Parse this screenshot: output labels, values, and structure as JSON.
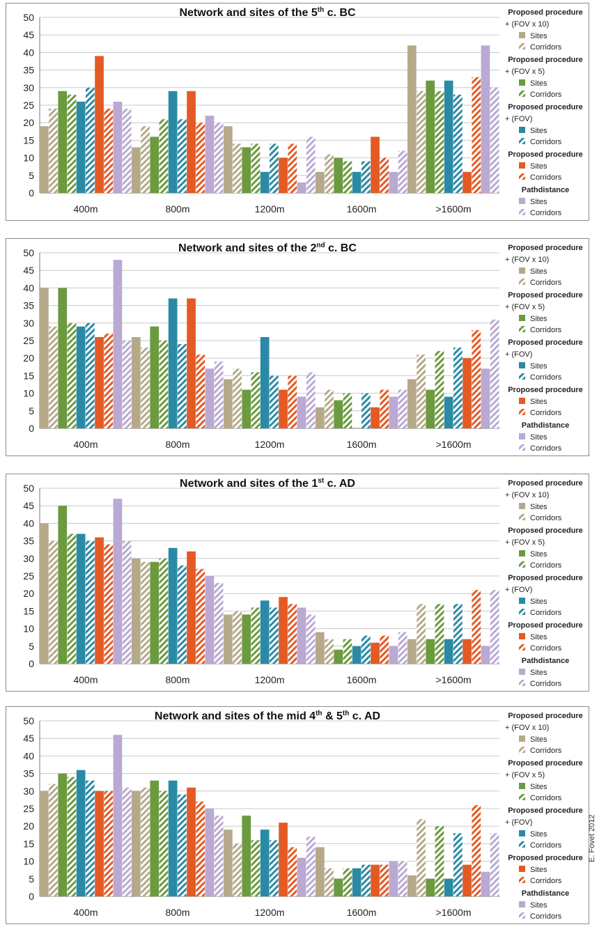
{
  "credit": "E. Fovet 2012",
  "legend_groups": [
    {
      "title": "Proposed procedure",
      "subtitle": "+ (FOV x 10)",
      "color": "#b5a98a"
    },
    {
      "title": "Proposed procedure",
      "subtitle": "+ (FOV x 5)",
      "color": "#6b9a3f"
    },
    {
      "title": "Proposed procedure",
      "subtitle": "+ (FOV)",
      "color": "#2a8aa6"
    },
    {
      "title": "Proposed procedure",
      "subtitle": "",
      "color": "#e45a24"
    },
    {
      "title": "Pathdistance",
      "subtitle": "",
      "color": "#b9a9d3"
    }
  ],
  "legend_entries": [
    "Sites",
    "Corridors"
  ],
  "chart_data": [
    {
      "type": "bar",
      "title_main": "Network and sites of the 5",
      "title_sup": "th",
      "title_tail": " c. BC",
      "categories": [
        "400m",
        "800m",
        "1200m",
        "1600m",
        ">1600m"
      ],
      "ylim": [
        0,
        50
      ],
      "yticks": [
        0,
        5,
        10,
        15,
        20,
        25,
        30,
        35,
        40,
        45,
        50
      ],
      "grid": true,
      "legend_position": "right",
      "series": [
        {
          "group": 0,
          "kind": "Sites",
          "values": [
            19,
            13,
            19,
            6,
            42
          ]
        },
        {
          "group": 0,
          "kind": "Corridors",
          "values": [
            24,
            19,
            14,
            11,
            29
          ]
        },
        {
          "group": 1,
          "kind": "Sites",
          "values": [
            29,
            16,
            13,
            10,
            32
          ]
        },
        {
          "group": 1,
          "kind": "Corridors",
          "values": [
            28,
            21,
            14,
            9,
            29
          ]
        },
        {
          "group": 2,
          "kind": "Sites",
          "values": [
            26,
            29,
            6,
            6,
            32
          ]
        },
        {
          "group": 2,
          "kind": "Corridors",
          "values": [
            30,
            21,
            14,
            9,
            28
          ]
        },
        {
          "group": 3,
          "kind": "Sites",
          "values": [
            39,
            29,
            10,
            16,
            6
          ]
        },
        {
          "group": 3,
          "kind": "Corridors",
          "values": [
            24,
            20,
            14,
            10,
            33
          ]
        },
        {
          "group": 4,
          "kind": "Sites",
          "values": [
            26,
            22,
            3,
            6,
            42
          ]
        },
        {
          "group": 4,
          "kind": "Corridors",
          "values": [
            24,
            20,
            16,
            12,
            30
          ]
        }
      ]
    },
    {
      "type": "bar",
      "title_main": "Network and sites of the 2",
      "title_sup": "nd",
      "title_tail": " c. BC",
      "categories": [
        "400m",
        "800m",
        "1200m",
        "1600m",
        ">1600m"
      ],
      "ylim": [
        0,
        50
      ],
      "yticks": [
        0,
        5,
        10,
        15,
        20,
        25,
        30,
        35,
        40,
        45,
        50
      ],
      "grid": true,
      "legend_position": "right",
      "series": [
        {
          "group": 0,
          "kind": "Sites",
          "values": [
            40,
            26,
            14,
            6,
            14
          ]
        },
        {
          "group": 0,
          "kind": "Corridors",
          "values": [
            29,
            23,
            17,
            11,
            21
          ]
        },
        {
          "group": 1,
          "kind": "Sites",
          "values": [
            40,
            29,
            11,
            8,
            11
          ]
        },
        {
          "group": 1,
          "kind": "Corridors",
          "values": [
            30,
            25,
            16,
            10,
            22
          ]
        },
        {
          "group": 2,
          "kind": "Sites",
          "values": [
            29,
            37,
            26,
            0,
            9
          ]
        },
        {
          "group": 2,
          "kind": "Corridors",
          "values": [
            30,
            24,
            15,
            10,
            23
          ]
        },
        {
          "group": 3,
          "kind": "Sites",
          "values": [
            26,
            37,
            11,
            6,
            20
          ]
        },
        {
          "group": 3,
          "kind": "Corridors",
          "values": [
            27,
            21,
            15,
            11,
            28
          ]
        },
        {
          "group": 4,
          "kind": "Sites",
          "values": [
            48,
            17,
            9,
            9,
            17
          ]
        },
        {
          "group": 4,
          "kind": "Corridors",
          "values": [
            25,
            19,
            16,
            11,
            31
          ]
        }
      ]
    },
    {
      "type": "bar",
      "title_main": "Network and sites of the 1",
      "title_sup": "st",
      "title_tail": " c. AD",
      "categories": [
        "400m",
        "800m",
        "1200m",
        "1600m",
        ">1600m"
      ],
      "ylim": [
        0,
        50
      ],
      "yticks": [
        0,
        5,
        10,
        15,
        20,
        25,
        30,
        35,
        40,
        45,
        50
      ],
      "grid": true,
      "legend_position": "right",
      "series": [
        {
          "group": 0,
          "kind": "Sites",
          "values": [
            40,
            30,
            14,
            9,
            7
          ]
        },
        {
          "group": 0,
          "kind": "Corridors",
          "values": [
            35,
            29,
            15,
            7,
            17
          ]
        },
        {
          "group": 1,
          "kind": "Sites",
          "values": [
            45,
            29,
            14,
            4,
            7
          ]
        },
        {
          "group": 1,
          "kind": "Corridors",
          "values": [
            37,
            30,
            16,
            7,
            17
          ]
        },
        {
          "group": 2,
          "kind": "Sites",
          "values": [
            37,
            33,
            18,
            5,
            7
          ]
        },
        {
          "group": 2,
          "kind": "Corridors",
          "values": [
            35,
            28,
            16,
            8,
            17
          ]
        },
        {
          "group": 3,
          "kind": "Sites",
          "values": [
            36,
            32,
            19,
            6,
            7
          ]
        },
        {
          "group": 3,
          "kind": "Corridors",
          "values": [
            34,
            27,
            17,
            8,
            21
          ]
        },
        {
          "group": 4,
          "kind": "Sites",
          "values": [
            47,
            25,
            16,
            5,
            5
          ]
        },
        {
          "group": 4,
          "kind": "Corridors",
          "values": [
            35,
            23,
            14,
            9,
            21
          ]
        }
      ]
    },
    {
      "type": "bar",
      "title_main": "Network and sites of the mid 4",
      "title_sup": "th",
      "title_tail": " & 5",
      "title_sup2": "th",
      "title_tail2": " c. AD",
      "categories": [
        "400m",
        "800m",
        "1200m",
        "1600m",
        ">1600m"
      ],
      "ylim": [
        0,
        50
      ],
      "yticks": [
        0,
        5,
        10,
        15,
        20,
        25,
        30,
        35,
        40,
        45,
        50
      ],
      "grid": true,
      "legend_position": "right",
      "series": [
        {
          "group": 0,
          "kind": "Sites",
          "values": [
            30,
            30,
            19,
            14,
            6
          ]
        },
        {
          "group": 0,
          "kind": "Corridors",
          "values": [
            32,
            31,
            15,
            8,
            22
          ]
        },
        {
          "group": 1,
          "kind": "Sites",
          "values": [
            35,
            33,
            23,
            5,
            5
          ]
        },
        {
          "group": 1,
          "kind": "Corridors",
          "values": [
            34,
            30,
            16,
            8,
            20
          ]
        },
        {
          "group": 2,
          "kind": "Sites",
          "values": [
            36,
            33,
            19,
            8,
            5
          ]
        },
        {
          "group": 2,
          "kind": "Corridors",
          "values": [
            33,
            29,
            16,
            9,
            18
          ]
        },
        {
          "group": 3,
          "kind": "Sites",
          "values": [
            30,
            31,
            21,
            9,
            9
          ]
        },
        {
          "group": 3,
          "kind": "Corridors",
          "values": [
            30,
            27,
            14,
            9,
            26
          ]
        },
        {
          "group": 4,
          "kind": "Sites",
          "values": [
            46,
            25,
            11,
            10,
            7
          ]
        },
        {
          "group": 4,
          "kind": "Corridors",
          "values": [
            31,
            23,
            17,
            10,
            18
          ]
        }
      ]
    }
  ]
}
